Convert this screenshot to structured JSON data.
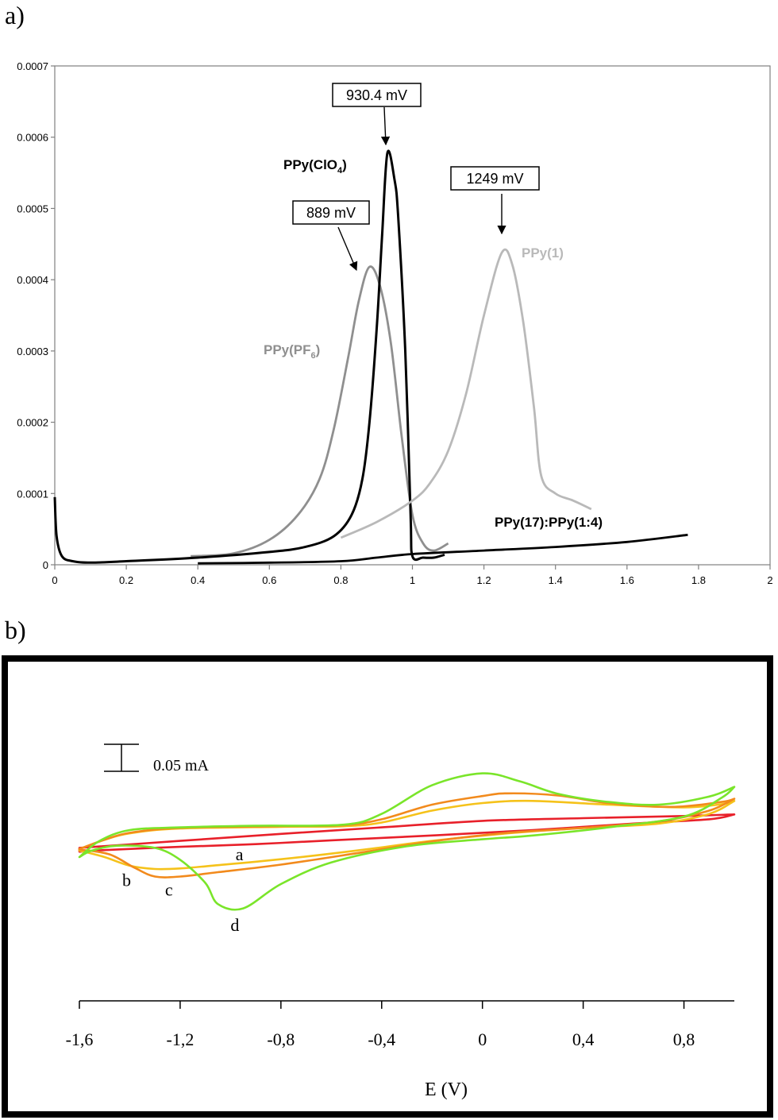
{
  "figure": {
    "panel_a_label": "a)",
    "panel_b_label": "b)"
  },
  "colors": {
    "black": "#000000",
    "dark_gray": "#8f8f8f",
    "light_gray": "#b9b9b9",
    "red": "#e8202a",
    "orange": "#f28a1c",
    "yellow": "#f5c21a",
    "green": "#7ae52a"
  },
  "chart_data": [
    {
      "type": "line",
      "title": "",
      "xlabel": "",
      "ylabel": "",
      "xlim": [
        0,
        2
      ],
      "ylim": [
        0,
        0.0007
      ],
      "grid": false,
      "x_ticks": [
        {
          "value": 0,
          "label": "0"
        },
        {
          "value": 0.2,
          "label": "0.2"
        },
        {
          "value": 0.4,
          "label": "0.4"
        },
        {
          "value": 0.6,
          "label": "0.6"
        },
        {
          "value": 0.8,
          "label": "0.8"
        },
        {
          "value": 1,
          "label": "1"
        },
        {
          "value": 1.2,
          "label": "1.2"
        },
        {
          "value": 1.4,
          "label": "1.4"
        },
        {
          "value": 1.6,
          "label": "1.6"
        },
        {
          "value": 1.8,
          "label": "1.8"
        },
        {
          "value": 2,
          "label": "2"
        }
      ],
      "y_ticks": [
        {
          "value": 0,
          "label": "0"
        },
        {
          "value": 0.0001,
          "label": "0.0001"
        },
        {
          "value": 0.0002,
          "label": "0.0002"
        },
        {
          "value": 0.0003,
          "label": "0.0003"
        },
        {
          "value": 0.0004,
          "label": "0.0004"
        },
        {
          "value": 0.0005,
          "label": "0.0005"
        },
        {
          "value": 0.0006,
          "label": "0.0006"
        },
        {
          "value": 0.0007,
          "label": "0.0007"
        }
      ],
      "series": [
        {
          "name": "PPy(PF6)",
          "label_main": "PPy(PF",
          "label_sub": "6",
          "label_tail": ")",
          "color_key": "dark_gray",
          "points": [
            [
              0.38,
              1.2e-05
            ],
            [
              0.5,
              1.6e-05
            ],
            [
              0.6,
              3.5e-05
            ],
            [
              0.68,
              7e-05
            ],
            [
              0.74,
              0.00012
            ],
            [
              0.78,
              0.00019
            ],
            [
              0.82,
              0.00029
            ],
            [
              0.85,
              0.00037
            ],
            [
              0.88,
              0.000418
            ],
            [
              0.91,
              0.00039
            ],
            [
              0.94,
              0.00031
            ],
            [
              0.97,
              0.00018
            ],
            [
              1.0,
              7e-05
            ],
            [
              1.03,
              3e-05
            ],
            [
              1.06,
              2e-05
            ],
            [
              1.1,
              3e-05
            ]
          ]
        },
        {
          "name": "PPy(ClO4)",
          "label_main": "PPy(ClO",
          "label_sub": "4",
          "label_tail": ")",
          "color_key": "black",
          "points": [
            [
              0.0,
              9.5e-05
            ],
            [
              0.005,
              4e-05
            ],
            [
              0.02,
              1.2e-05
            ],
            [
              0.05,
              5e-06
            ],
            [
              0.1,
              3e-06
            ],
            [
              0.2,
              5e-06
            ],
            [
              0.4,
              1e-05
            ],
            [
              0.6,
              1.8e-05
            ],
            [
              0.7,
              2.5e-05
            ],
            [
              0.78,
              4e-05
            ],
            [
              0.83,
              7e-05
            ],
            [
              0.86,
              0.00012
            ],
            [
              0.88,
              0.0002
            ],
            [
              0.9,
              0.00033
            ],
            [
              0.915,
              0.00046
            ],
            [
              0.93,
              0.000578
            ],
            [
              0.95,
              0.00054
            ],
            [
              0.96,
              0.00049
            ],
            [
              0.98,
              0.0003
            ],
            [
              0.995,
              7e-05
            ],
            [
              1.0,
              1.2e-05
            ],
            [
              1.03,
              1e-05
            ],
            [
              1.06,
              1e-05
            ],
            [
              1.09,
              1.4e-05
            ]
          ]
        },
        {
          "name": "PPy(1)",
          "label_main": "PPy(1)",
          "label_sub": "",
          "label_tail": "",
          "color_key": "light_gray",
          "points": [
            [
              0.8,
              3.8e-05
            ],
            [
              0.9,
              6e-05
            ],
            [
              1.0,
              9e-05
            ],
            [
              1.05,
              0.000115
            ],
            [
              1.1,
              0.00016
            ],
            [
              1.15,
              0.00024
            ],
            [
              1.2,
              0.00035
            ],
            [
              1.25,
              0.000438
            ],
            [
              1.28,
              0.00042
            ],
            [
              1.31,
              0.00034
            ],
            [
              1.34,
              0.00022
            ],
            [
              1.36,
              0.000125
            ],
            [
              1.4,
              0.0001
            ],
            [
              1.45,
              9e-05
            ],
            [
              1.5,
              7.8e-05
            ]
          ]
        },
        {
          "name": "PPy(17):PPy(1:4)",
          "label_main": "PPy(17):PPy(1:4)",
          "label_sub": "",
          "label_tail": "",
          "color_key": "black",
          "points": [
            [
              0.4,
              2e-06
            ],
            [
              0.6,
              3e-06
            ],
            [
              0.8,
              5e-06
            ],
            [
              0.9,
              1e-05
            ],
            [
              1.0,
              1.5e-05
            ],
            [
              1.2,
              2e-05
            ],
            [
              1.4,
              2.5e-05
            ],
            [
              1.6,
              3.2e-05
            ],
            [
              1.77,
              4.2e-05
            ]
          ]
        }
      ],
      "annotations": [
        {
          "text": "930.4 mV",
          "x": 0.93,
          "y": 0.00058
        },
        {
          "text": "889 mV",
          "x": 0.88,
          "y": 0.000418
        },
        {
          "text": "1249 mV",
          "x": 1.25,
          "y": 0.000438
        }
      ]
    },
    {
      "type": "line",
      "title": "",
      "xlabel": "E (V)",
      "ylabel": "",
      "xlim": [
        -1.6,
        1.0
      ],
      "grid": false,
      "x_ticks": [
        {
          "value": -1.6,
          "label": "-1,6"
        },
        {
          "value": -1.2,
          "label": "-1,2"
        },
        {
          "value": -0.8,
          "label": "-0,8"
        },
        {
          "value": -0.4,
          "label": "-0,4"
        },
        {
          "value": 0,
          "label": "0"
        },
        {
          "value": 0.4,
          "label": "0,4"
        },
        {
          "value": 0.8,
          "label": "0,8"
        }
      ],
      "scale_bar": {
        "label": "0.05 mA",
        "value_mA": 0.05
      },
      "current_units": "mA",
      "series": [
        {
          "name": "a",
          "color_key": "red",
          "upper": [
            [
              -1.6,
              -0.033
            ],
            [
              -1.2,
              -0.02
            ],
            [
              -0.8,
              -0.007
            ],
            [
              -0.4,
              0.005
            ],
            [
              0,
              0.017
            ],
            [
              0.4,
              0.022
            ],
            [
              0.8,
              0.026
            ],
            [
              1.0,
              0.029
            ]
          ],
          "lower": [
            [
              1.0,
              0.029
            ],
            [
              0.9,
              0.02
            ],
            [
              0.6,
              0.012
            ],
            [
              0.2,
              0.0
            ],
            [
              -0.2,
              -0.01
            ],
            [
              -0.6,
              -0.019
            ],
            [
              -0.9,
              -0.026
            ],
            [
              -1.2,
              -0.031
            ],
            [
              -1.5,
              -0.037
            ],
            [
              -1.6,
              -0.04
            ]
          ]
        },
        {
          "name": "b",
          "color_key": "yellow",
          "upper": [
            [
              -1.6,
              -0.035
            ],
            [
              -1.5,
              -0.018
            ],
            [
              -1.4,
              -0.006
            ],
            [
              -1.2,
              0.003
            ],
            [
              -0.8,
              0.006
            ],
            [
              -0.55,
              0.007
            ],
            [
              -0.4,
              0.014
            ],
            [
              -0.2,
              0.036
            ],
            [
              0,
              0.05
            ],
            [
              0.2,
              0.054
            ],
            [
              0.5,
              0.047
            ],
            [
              0.8,
              0.042
            ],
            [
              0.95,
              0.048
            ],
            [
              1.0,
              0.054
            ]
          ],
          "lower": [
            [
              1.0,
              0.054
            ],
            [
              0.9,
              0.03
            ],
            [
              0.7,
              0.012
            ],
            [
              0.4,
              0.004
            ],
            [
              0.1,
              -0.006
            ],
            [
              -0.2,
              -0.02
            ],
            [
              -0.5,
              -0.038
            ],
            [
              -0.8,
              -0.054
            ],
            [
              -1.05,
              -0.065
            ],
            [
              -1.2,
              -0.071
            ],
            [
              -1.3,
              -0.072
            ],
            [
              -1.4,
              -0.066
            ],
            [
              -1.5,
              -0.05
            ],
            [
              -1.6,
              -0.038
            ]
          ]
        },
        {
          "name": "c",
          "color_key": "orange",
          "upper": [
            [
              -1.6,
              -0.035
            ],
            [
              -1.5,
              -0.018
            ],
            [
              -1.4,
              -0.005
            ],
            [
              -1.2,
              0.004
            ],
            [
              -0.8,
              0.007
            ],
            [
              -0.55,
              0.009
            ],
            [
              -0.4,
              0.02
            ],
            [
              -0.2,
              0.047
            ],
            [
              0,
              0.063
            ],
            [
              0.1,
              0.068
            ],
            [
              0.3,
              0.064
            ],
            [
              0.5,
              0.05
            ],
            [
              0.75,
              0.043
            ],
            [
              0.95,
              0.052
            ],
            [
              1.0,
              0.058
            ]
          ],
          "lower": [
            [
              1.0,
              0.058
            ],
            [
              0.9,
              0.036
            ],
            [
              0.7,
              0.016
            ],
            [
              0.4,
              0.004
            ],
            [
              0.1,
              -0.005
            ],
            [
              -0.2,
              -0.021
            ],
            [
              -0.5,
              -0.043
            ],
            [
              -0.8,
              -0.064
            ],
            [
              -1.05,
              -0.078
            ],
            [
              -1.2,
              -0.086
            ],
            [
              -1.3,
              -0.086
            ],
            [
              -1.38,
              -0.07
            ],
            [
              -1.48,
              -0.045
            ],
            [
              -1.6,
              -0.036
            ]
          ]
        },
        {
          "name": "d",
          "color_key": "green",
          "upper": [
            [
              -1.6,
              -0.05
            ],
            [
              -1.52,
              -0.02
            ],
            [
              -1.4,
              0.0
            ],
            [
              -1.2,
              0.005
            ],
            [
              -0.9,
              0.008
            ],
            [
              -0.55,
              0.01
            ],
            [
              -0.4,
              0.03
            ],
            [
              -0.2,
              0.083
            ],
            [
              0,
              0.105
            ],
            [
              0.15,
              0.09
            ],
            [
              0.3,
              0.067
            ],
            [
              0.5,
              0.052
            ],
            [
              0.7,
              0.047
            ],
            [
              0.9,
              0.062
            ],
            [
              1.0,
              0.08
            ]
          ],
          "lower": [
            [
              1.0,
              0.08
            ],
            [
              0.95,
              0.06
            ],
            [
              0.8,
              0.025
            ],
            [
              0.5,
              0.005
            ],
            [
              0.2,
              -0.01
            ],
            [
              0,
              -0.017
            ],
            [
              -0.3,
              -0.03
            ],
            [
              -0.6,
              -0.06
            ],
            [
              -0.8,
              -0.1
            ],
            [
              -0.95,
              -0.145
            ],
            [
              -1.05,
              -0.137
            ],
            [
              -1.1,
              -0.098
            ],
            [
              -1.2,
              -0.055
            ],
            [
              -1.3,
              -0.033
            ],
            [
              -1.45,
              -0.029
            ],
            [
              -1.55,
              -0.038
            ],
            [
              -1.6,
              -0.05
            ]
          ]
        }
      ]
    }
  ]
}
